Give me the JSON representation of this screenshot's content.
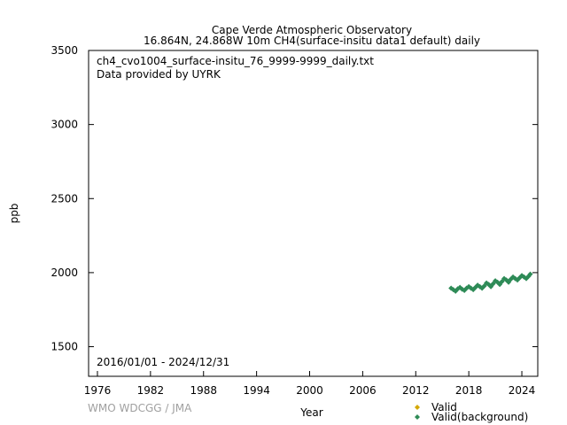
{
  "chart_data": {
    "type": "scatter",
    "title": "Cape Verde Atmospheric Observatory",
    "subtitle": "16.864N, 24.868W 10m    CH4(surface-insitu data1 default) daily",
    "annotations": [
      "ch4_cvo1004_surface-insitu_76_9999-9999_daily.txt",
      "Data provided by UYRK"
    ],
    "period": "2016/01/01 - 2024/12/31",
    "xlabel": "Year",
    "ylabel": "ppb",
    "xlim": [
      1975,
      2025.8
    ],
    "ylim": [
      1300,
      3500
    ],
    "x_ticks": [
      "1976",
      "1982",
      "1988",
      "1994",
      "2000",
      "2006",
      "2012",
      "2018",
      "2024"
    ],
    "y_ticks": [
      "1500",
      "2000",
      "2500",
      "3000",
      "3500"
    ],
    "legend_position": "bottom-right",
    "colors": {
      "valid": "#d4a800",
      "background": "#2e8b57"
    },
    "series": [
      {
        "name": "Valid",
        "values": []
      },
      {
        "name": "Valid(background)",
        "x": [
          2016.0,
          2016.25,
          2016.5,
          2016.75,
          2017.0,
          2017.25,
          2017.5,
          2017.75,
          2018.0,
          2018.25,
          2018.5,
          2018.75,
          2019.0,
          2019.25,
          2019.5,
          2019.75,
          2020.0,
          2020.25,
          2020.5,
          2020.75,
          2021.0,
          2021.25,
          2021.5,
          2021.75,
          2022.0,
          2022.25,
          2022.5,
          2022.75,
          2023.0,
          2023.25,
          2023.5,
          2023.75,
          2024.0,
          2024.25,
          2024.5,
          2024.75,
          2024.95
        ],
        "y": [
          1895,
          1885,
          1875,
          1890,
          1900,
          1888,
          1880,
          1895,
          1905,
          1895,
          1885,
          1900,
          1915,
          1905,
          1895,
          1910,
          1930,
          1920,
          1905,
          1925,
          1945,
          1935,
          1920,
          1940,
          1960,
          1950,
          1935,
          1955,
          1970,
          1960,
          1950,
          1965,
          1980,
          1970,
          1960,
          1975,
          1990
        ]
      }
    ]
  },
  "credit": "WMO WDCGG / JMA"
}
